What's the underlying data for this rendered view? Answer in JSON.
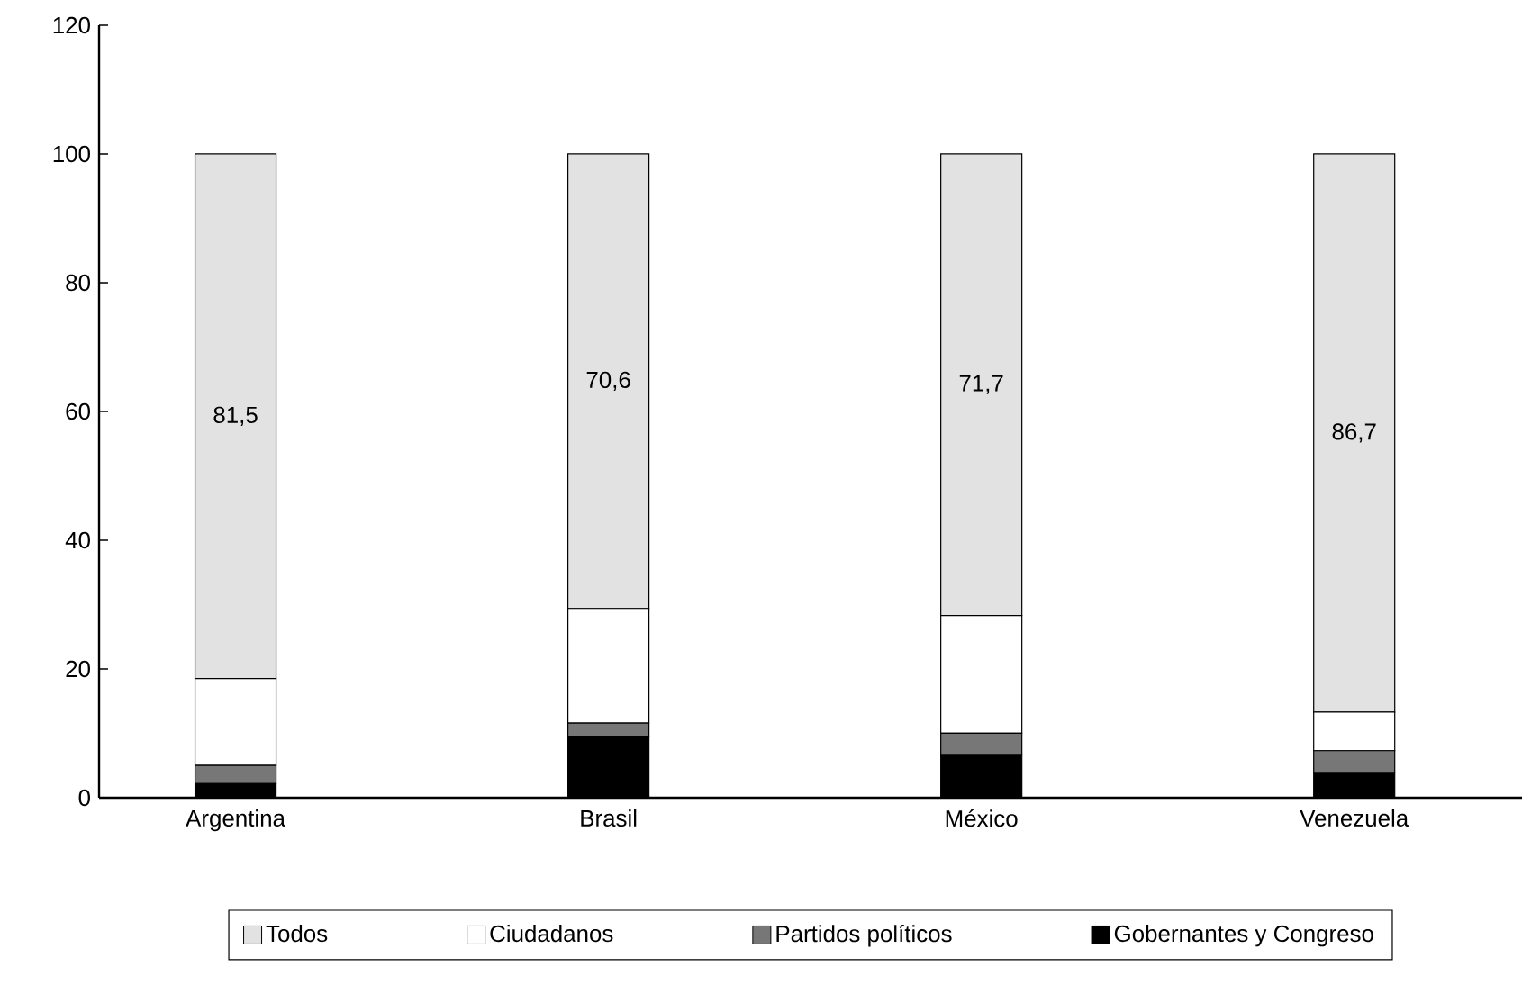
{
  "chart_data": {
    "type": "bar",
    "stacked": true,
    "categories": [
      "Argentina",
      "Brasil",
      "México",
      "Venezuela"
    ],
    "series": [
      {
        "name": "Gobernantes y Congreso",
        "color": "#000000",
        "values": [
          2.2,
          9.5,
          6.7,
          3.9
        ]
      },
      {
        "name": "Partidos políticos",
        "color": "#777777",
        "values": [
          2.8,
          2.1,
          3.3,
          3.4
        ]
      },
      {
        "name": "Ciudadanos",
        "color": "#ffffff",
        "values": [
          13.5,
          17.8,
          18.3,
          6.0
        ]
      },
      {
        "name": "Todos",
        "color": "#e2e2e2",
        "values": [
          81.5,
          70.6,
          71.7,
          86.7
        ],
        "value_labels": [
          "81,5",
          "70,6",
          "71,7",
          "86,7"
        ]
      }
    ],
    "ylim": [
      0,
      120
    ],
    "yticks": [
      0,
      20,
      40,
      60,
      80,
      100,
      120
    ],
    "grid": false,
    "legend": "bottom"
  }
}
